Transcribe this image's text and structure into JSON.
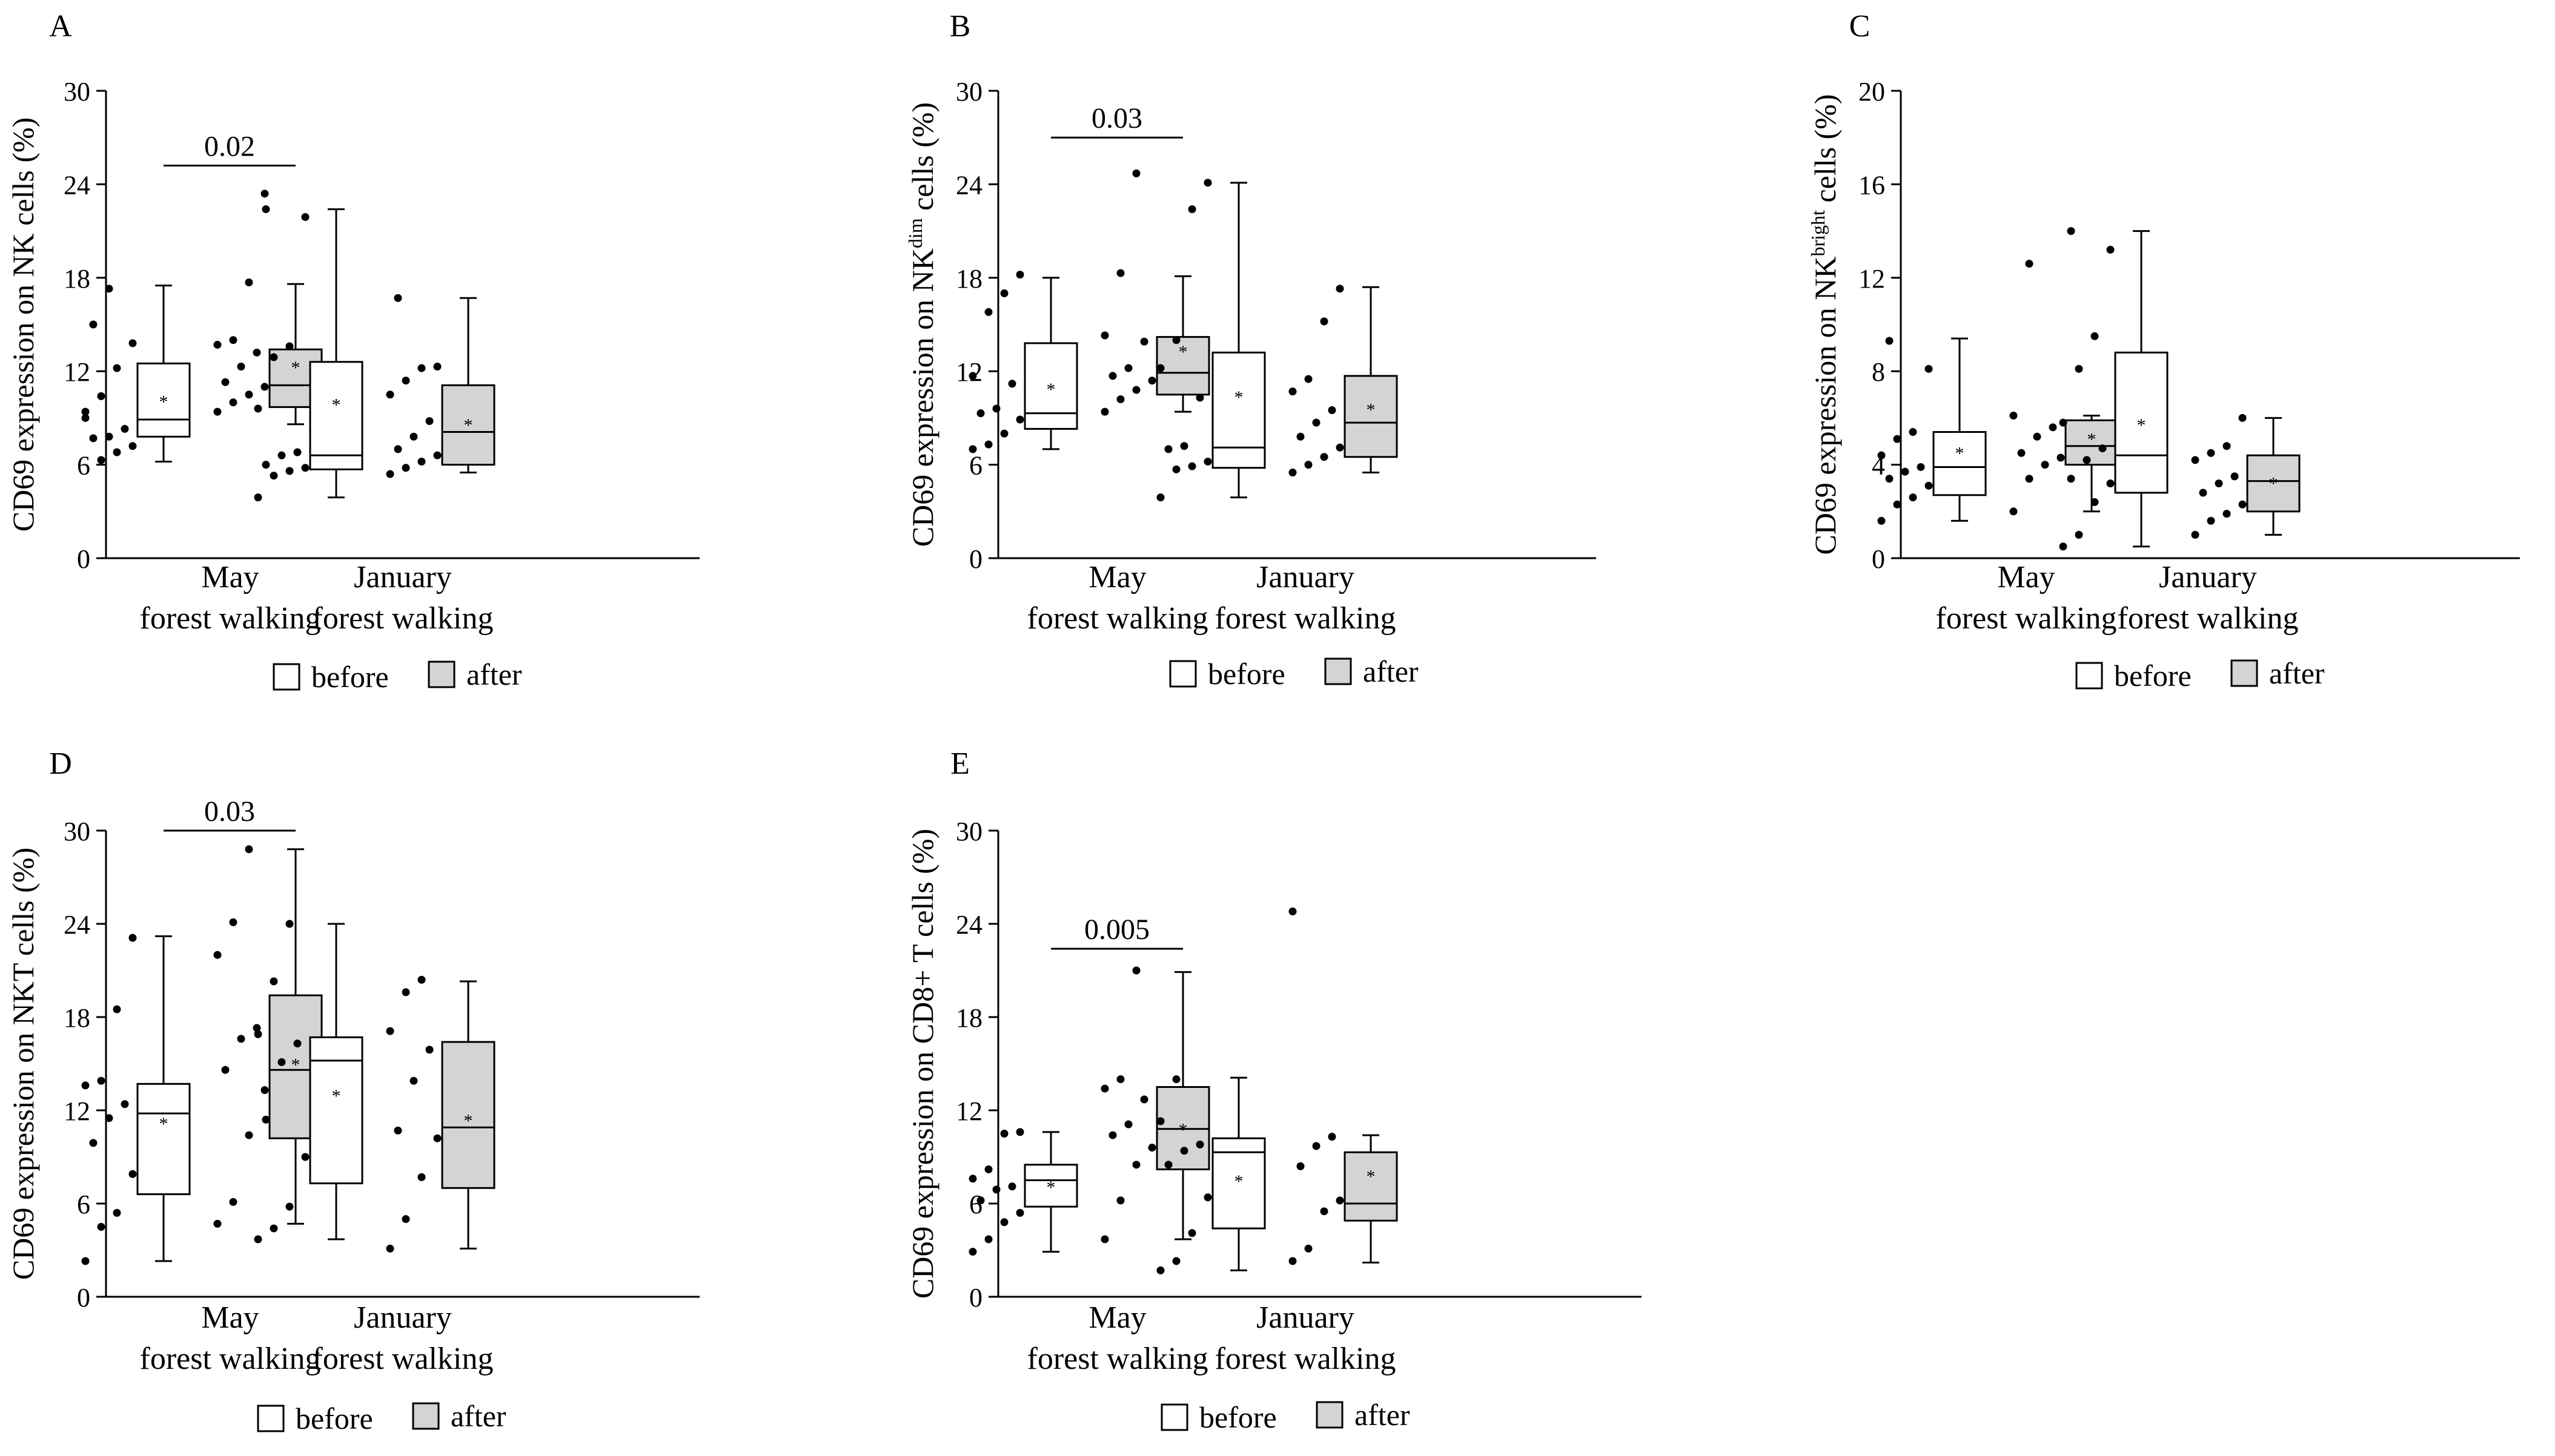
{
  "figure": {
    "legend": {
      "before": "before",
      "after": "after"
    },
    "groups": [
      "May\nforest walking",
      "January\nforest walking"
    ],
    "colors": {
      "before": "#ffffff",
      "after": "#d4d4d4",
      "ink": "#000000"
    }
  },
  "chart_data": [
    {
      "panel": "A",
      "type": "box",
      "ylabel_html": [
        "CD69 expression on NK cells (%)"
      ],
      "ylim": [
        0,
        30
      ],
      "yticks": [
        0,
        6,
        12,
        18,
        24,
        30
      ],
      "significance": {
        "label": "0.02",
        "group": 0
      },
      "series": [
        {
          "name": "before",
          "group": 0,
          "q1": 7.8,
          "median": 8.9,
          "q3": 12.5,
          "whisker_low": 6.2,
          "whisker_high": 17.5,
          "mean": 10.2,
          "points": [
            9.4,
            6.3,
            6.8,
            7.2,
            7.7,
            7.8,
            8.3,
            9.0,
            10.4,
            12.2,
            13.8,
            15.0,
            17.3
          ]
        },
        {
          "name": "after",
          "group": 0,
          "q1": 9.7,
          "median": 11.1,
          "q3": 13.4,
          "whisker_low": 8.6,
          "whisker_high": 17.6,
          "mean": 12.4,
          "points": [
            9.4,
            10.0,
            10.5,
            11.0,
            11.3,
            12.3,
            13.2,
            13.7,
            14.0,
            17.7,
            23.4
          ]
        },
        {
          "name": "before",
          "group": 1,
          "q1": 5.7,
          "median": 6.6,
          "q3": 12.6,
          "whisker_low": 3.9,
          "whisker_high": 22.4,
          "mean": 10.0,
          "points": [
            3.9,
            5.3,
            5.6,
            5.8,
            6.0,
            6.6,
            6.8,
            9.6,
            12.9,
            13.6,
            21.9,
            22.4
          ]
        },
        {
          "name": "after",
          "group": 1,
          "q1": 6.0,
          "median": 8.1,
          "q3": 11.1,
          "whisker_low": 5.5,
          "whisker_high": 16.7,
          "mean": 8.7,
          "points": [
            5.4,
            5.8,
            6.2,
            6.6,
            7.0,
            7.8,
            8.8,
            10.5,
            11.4,
            12.2,
            12.3,
            16.7
          ]
        }
      ]
    },
    {
      "panel": "B",
      "type": "box",
      "ylabel_html": [
        "CD69 expression on NK",
        "dim",
        " cells (%)"
      ],
      "ylim": [
        0,
        30
      ],
      "yticks": [
        0,
        6,
        12,
        18,
        24,
        30
      ],
      "significance": {
        "label": "0.03",
        "group": 0
      },
      "series": [
        {
          "name": "before",
          "group": 0,
          "q1": 8.3,
          "median": 9.3,
          "q3": 13.8,
          "whisker_low": 7.0,
          "whisker_high": 18.0,
          "mean": 11.0,
          "points": [
            7.0,
            7.3,
            8.0,
            8.9,
            9.3,
            9.6,
            11.2,
            11.7,
            15.8,
            17.0,
            18.2
          ]
        },
        {
          "name": "after",
          "group": 0,
          "q1": 10.5,
          "median": 11.9,
          "q3": 14.2,
          "whisker_low": 9.4,
          "whisker_high": 18.1,
          "mean": 13.4,
          "points": [
            9.4,
            10.2,
            10.8,
            11.4,
            11.7,
            12.2,
            13.9,
            14.3,
            18.3,
            24.7
          ]
        },
        {
          "name": "before",
          "group": 1,
          "q1": 5.8,
          "median": 7.1,
          "q3": 13.2,
          "whisker_low": 3.9,
          "whisker_high": 24.1,
          "mean": 10.5,
          "points": [
            3.9,
            5.7,
            5.9,
            6.2,
            7.0,
            7.2,
            10.3,
            12.2,
            14.0,
            22.4,
            24.1
          ]
        },
        {
          "name": "after",
          "group": 1,
          "q1": 6.5,
          "median": 8.7,
          "q3": 11.7,
          "whisker_low": 5.5,
          "whisker_high": 17.4,
          "mean": 9.7,
          "points": [
            5.5,
            6.0,
            6.5,
            7.1,
            7.8,
            8.7,
            9.5,
            10.7,
            11.5,
            15.2,
            17.3
          ]
        }
      ]
    },
    {
      "panel": "C",
      "type": "box",
      "ylabel_html": [
        "CD69 expression on NK",
        "bright",
        " cells (%)"
      ],
      "ylim": [
        0,
        20
      ],
      "yticks": [
        0,
        4,
        8,
        12,
        16,
        20
      ],
      "significance": null,
      "series": [
        {
          "name": "before",
          "group": 0,
          "q1": 2.7,
          "median": 3.9,
          "q3": 5.4,
          "whisker_low": 1.6,
          "whisker_high": 9.4,
          "mean": 4.6,
          "points": [
            1.6,
            2.3,
            2.6,
            3.1,
            3.4,
            3.7,
            3.9,
            4.4,
            5.1,
            5.4,
            8.1,
            9.3
          ]
        },
        {
          "name": "after",
          "group": 0,
          "q1": 4.0,
          "median": 4.8,
          "q3": 5.9,
          "whisker_low": 2.0,
          "whisker_high": 6.1,
          "mean": 5.2,
          "points": [
            2.0,
            3.4,
            4.0,
            4.3,
            4.5,
            5.2,
            5.6,
            6.1,
            12.6
          ]
        },
        {
          "name": "before",
          "group": 1,
          "q1": 2.8,
          "median": 4.4,
          "q3": 8.8,
          "whisker_low": 0.5,
          "whisker_high": 14.0,
          "mean": 5.8,
          "points": [
            0.5,
            1.0,
            2.4,
            3.2,
            3.4,
            4.2,
            4.7,
            5.8,
            8.1,
            9.5,
            13.2,
            14.0
          ]
        },
        {
          "name": "after",
          "group": 1,
          "q1": 2.0,
          "median": 3.3,
          "q3": 4.4,
          "whisker_low": 1.0,
          "whisker_high": 6.0,
          "mean": 3.3,
          "points": [
            1.0,
            1.6,
            1.9,
            2.3,
            2.8,
            3.2,
            3.5,
            4.2,
            4.5,
            4.8,
            6.0
          ]
        }
      ]
    },
    {
      "panel": "D",
      "type": "box",
      "ylabel_html": [
        "CD69 expression on NKT cells (%)"
      ],
      "ylim": [
        0,
        30
      ],
      "yticks": [
        0,
        6,
        12,
        18,
        24,
        30
      ],
      "significance": {
        "label": "0.03",
        "group": 0
      },
      "series": [
        {
          "name": "before",
          "group": 0,
          "q1": 6.6,
          "median": 11.8,
          "q3": 13.7,
          "whisker_low": 2.3,
          "whisker_high": 23.2,
          "mean": 11.3,
          "points": [
            2.3,
            4.5,
            5.4,
            7.9,
            9.9,
            11.5,
            12.4,
            13.6,
            13.9,
            18.5,
            23.1
          ]
        },
        {
          "name": "after",
          "group": 0,
          "q1": 10.2,
          "median": 14.6,
          "q3": 19.4,
          "whisker_low": 4.7,
          "whisker_high": 28.8,
          "mean": 15.1,
          "points": [
            4.7,
            6.1,
            10.4,
            13.3,
            14.6,
            16.6,
            17.3,
            22.0,
            24.1,
            28.8
          ]
        },
        {
          "name": "before",
          "group": 1,
          "q1": 7.3,
          "median": 15.2,
          "q3": 16.7,
          "whisker_low": 3.7,
          "whisker_high": 24.0,
          "mean": 13.1,
          "points": [
            3.7,
            4.4,
            5.8,
            9.0,
            11.4,
            15.1,
            16.3,
            16.9,
            20.3,
            24.0
          ]
        },
        {
          "name": "after",
          "group": 1,
          "q1": 7.0,
          "median": 10.9,
          "q3": 16.4,
          "whisker_low": 3.1,
          "whisker_high": 20.3,
          "mean": 11.5,
          "points": [
            3.1,
            5.0,
            7.7,
            10.2,
            10.7,
            13.9,
            15.9,
            17.1,
            19.6,
            20.4
          ]
        }
      ]
    },
    {
      "panel": "E",
      "type": "box",
      "ylabel_html": [
        "CD69 expression on CD8+ T cells (%)"
      ],
      "ylim": [
        0,
        30
      ],
      "yticks": [
        0,
        6,
        12,
        18,
        24,
        30
      ],
      "significance": {
        "label": "0.005",
        "group": 0
      },
      "series": [
        {
          "name": "before",
          "group": 0,
          "q1": 5.8,
          "median": 7.5,
          "q3": 8.5,
          "whisker_low": 2.9,
          "whisker_high": 10.6,
          "mean": 7.2,
          "points": [
            2.9,
            3.7,
            4.8,
            5.4,
            6.2,
            6.9,
            7.1,
            7.6,
            8.2,
            10.5,
            10.6
          ]
        },
        {
          "name": "after",
          "group": 0,
          "q1": 8.2,
          "median": 10.8,
          "q3": 13.5,
          "whisker_low": 3.7,
          "whisker_high": 20.9,
          "mean": 10.9,
          "points": [
            3.7,
            6.2,
            8.5,
            9.6,
            10.4,
            11.1,
            12.7,
            13.4,
            14.0,
            21.0
          ]
        },
        {
          "name": "before",
          "group": 1,
          "q1": 4.4,
          "median": 9.3,
          "q3": 10.2,
          "whisker_low": 1.7,
          "whisker_high": 14.1,
          "mean": 7.6,
          "points": [
            1.7,
            2.3,
            4.1,
            6.4,
            8.5,
            9.4,
            9.8,
            11.3,
            14.0
          ]
        },
        {
          "name": "after",
          "group": 1,
          "q1": 4.9,
          "median": 6.0,
          "q3": 9.3,
          "whisker_low": 2.2,
          "whisker_high": 10.4,
          "mean": 7.9,
          "points": [
            2.3,
            3.1,
            5.5,
            6.2,
            8.4,
            9.7,
            10.3,
            24.8
          ]
        }
      ]
    }
  ]
}
